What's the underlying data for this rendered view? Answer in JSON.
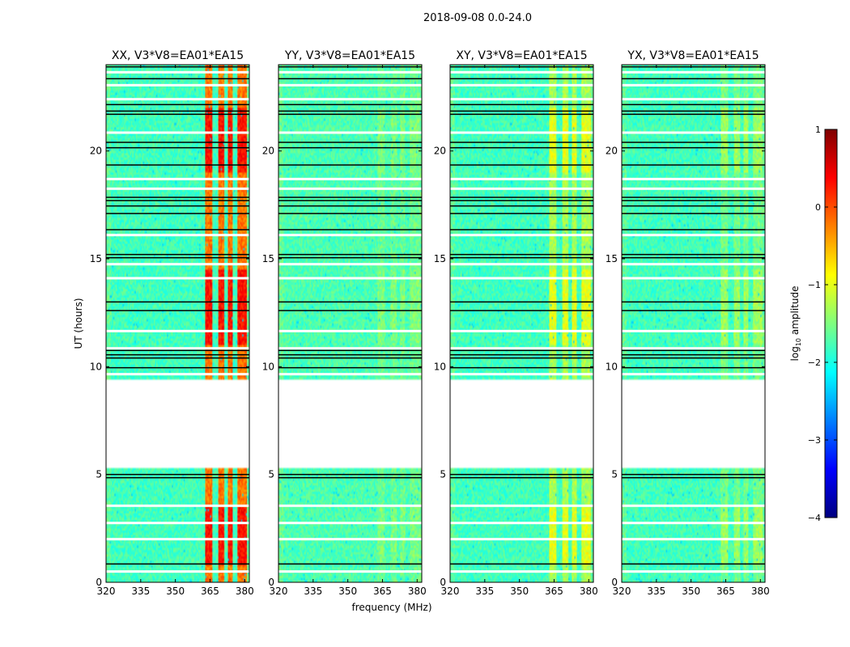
{
  "figure": {
    "suptitle": "2018-09-08 0.0-24.0"
  },
  "chart_data": {
    "type": "heatmap",
    "title": "2018-09-08 0.0-24.0",
    "xlabel": "frequency (MHz)",
    "ylabel": "UT (hours)",
    "xlim": [
      320,
      382
    ],
    "ylim": [
      0,
      24
    ],
    "x_ticks": [
      320,
      335,
      350,
      365,
      380
    ],
    "x_tick_labels": [
      "320",
      "335",
      "350",
      "365",
      "380"
    ],
    "y_ticks": [
      0,
      5,
      10,
      15,
      20
    ],
    "y_tick_labels": [
      "0",
      "5",
      "10",
      "15",
      "20"
    ],
    "data_gap_hours": [
      5.3,
      9.4
    ],
    "flagged_white_rows_hours": [
      0.5,
      2.0,
      2.75,
      3.55,
      9.65,
      10.85,
      11.65,
      14.1,
      14.75,
      16.1,
      18.25,
      18.7,
      20.85,
      22.4,
      23.05,
      23.65
    ],
    "flagged_black_rows_hours": [
      0.85,
      4.85,
      5.0,
      9.95,
      10.4,
      10.55,
      10.75,
      12.6,
      13.0,
      15.05,
      15.2,
      16.35,
      17.1,
      17.45,
      17.7,
      17.85,
      19.35,
      20.15,
      20.4,
      21.7,
      21.85,
      22.15,
      23.35,
      23.9
    ],
    "rfi_channels_mhz": [
      [
        363,
        366
      ],
      [
        368.5,
        371
      ],
      [
        372.5,
        375
      ],
      [
        377,
        381
      ]
    ],
    "colorbar": {
      "label": "log10 amplitude",
      "label_main": "log",
      "label_sub": "10",
      "label_rest": " amplitude",
      "range": [
        -4,
        1
      ],
      "ticks": [
        -4,
        -3,
        -2,
        -1,
        0,
        1
      ],
      "tick_labels": [
        "−4",
        "−3",
        "−2",
        "−1",
        "0",
        "1"
      ],
      "colormap": [
        "#00007f",
        "#0000ff",
        "#007fff",
        "#00ffff",
        "#7fff7f",
        "#ffff00",
        "#ff7f00",
        "#ff0000",
        "#7f0000"
      ]
    },
    "panels": [
      {
        "name": "XX",
        "title": "XX, V3*V8=EA01*EA15",
        "base_log_amp": -1.8,
        "rfi_log_amp": -0.2,
        "rfi_flare_log_amp": 0.3
      },
      {
        "name": "YY",
        "title": "YY, V3*V8=EA01*EA15",
        "base_log_amp": -1.75,
        "rfi_log_amp": -1.6,
        "rfi_flare_log_amp": -1.5
      },
      {
        "name": "XY",
        "title": "XY, V3*V8=EA01*EA15",
        "base_log_amp": -1.8,
        "rfi_log_amp": -1.3,
        "rfi_flare_log_amp": -1.0
      },
      {
        "name": "YX",
        "title": "YX, V3*V8=EA01*EA15",
        "base_log_amp": -1.8,
        "rfi_log_amp": -1.55,
        "rfi_flare_log_amp": -1.35
      }
    ]
  }
}
